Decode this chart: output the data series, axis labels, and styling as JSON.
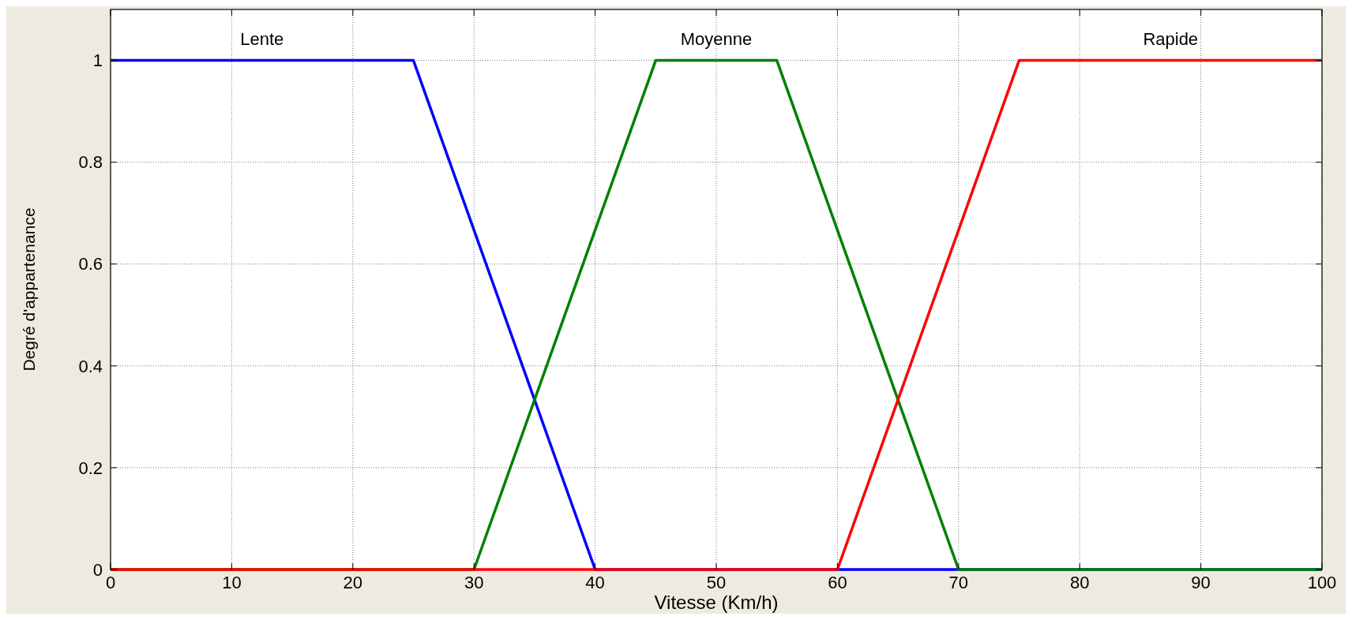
{
  "chart_data": {
    "type": "line",
    "xlabel": "Vitesse (Km/h)",
    "ylabel": "Degré d'appartenance",
    "xlim": [
      0,
      100
    ],
    "ylim": [
      0,
      1.1
    ],
    "xticks": [
      0,
      10,
      20,
      30,
      40,
      50,
      60,
      70,
      80,
      90,
      100
    ],
    "yticks": [
      0,
      0.2,
      0.4,
      0.6,
      0.8,
      1
    ],
    "grid": true,
    "legend": false,
    "line_style": "solid",
    "series": [
      {
        "name": "Lente",
        "color": "#0000ff",
        "x": [
          0,
          25,
          40,
          100
        ],
        "values": [
          1,
          1,
          0,
          0
        ]
      },
      {
        "name": "Moyenne",
        "color": "#008000",
        "x": [
          0,
          30,
          45,
          55,
          70,
          100
        ],
        "values": [
          0,
          0,
          1,
          1,
          0,
          0
        ]
      },
      {
        "name": "Rapide",
        "color": "#ff0000",
        "x": [
          0,
          60,
          75,
          100
        ],
        "values": [
          0,
          0,
          1,
          1
        ]
      }
    ]
  }
}
